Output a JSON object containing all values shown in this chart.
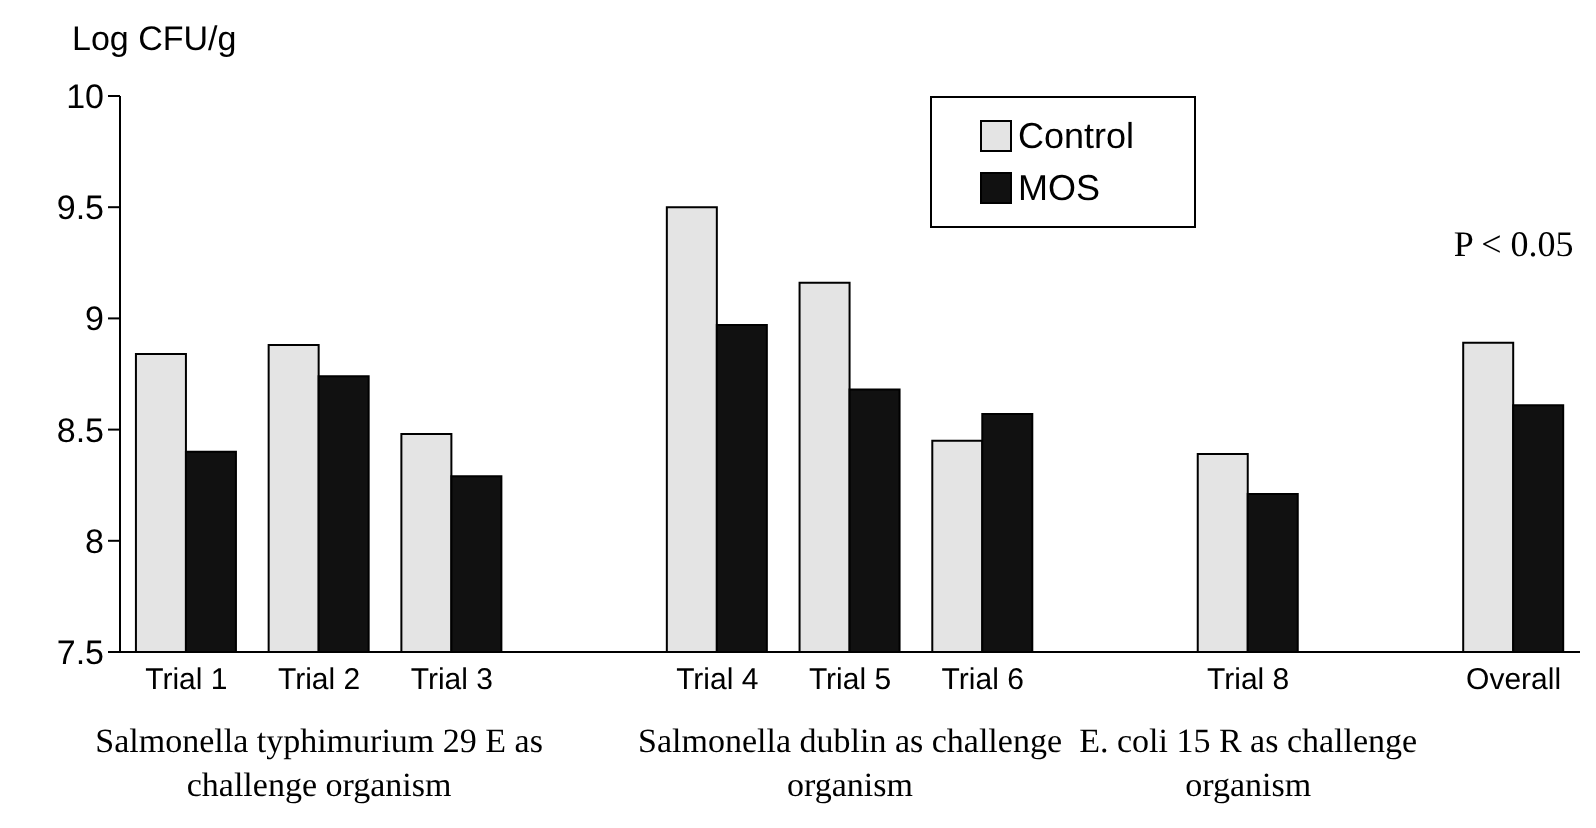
{
  "chart_data": {
    "type": "bar",
    "ylabel": "Log CFU/g",
    "categories": [
      "Trial 1",
      "Trial 2",
      "Trial 3",
      null,
      "Trial 4",
      "Trial 5",
      "Trial 6",
      null,
      "Trial 8",
      null,
      "Overall"
    ],
    "series": [
      {
        "name": "Control",
        "color": "#e4e4e4",
        "values": [
          8.84,
          8.88,
          8.48,
          null,
          9.5,
          9.16,
          8.45,
          null,
          8.39,
          null,
          8.89
        ]
      },
      {
        "name": "MOS",
        "color": "#111111",
        "values": [
          8.4,
          8.74,
          8.29,
          null,
          8.97,
          8.68,
          8.57,
          null,
          8.21,
          null,
          8.61
        ]
      }
    ],
    "ylim": [
      7.5,
      10
    ],
    "yticks": [
      7.5,
      8,
      8.5,
      9,
      9.5,
      10
    ],
    "grid": false,
    "legend": "top right",
    "annotations": [
      "P < 0.05",
      "Salmonella typhimurium 29 E as challenge organism",
      "Salmonella dublin as challenge organism",
      "E. coli 15 R as challenge organism"
    ]
  }
}
